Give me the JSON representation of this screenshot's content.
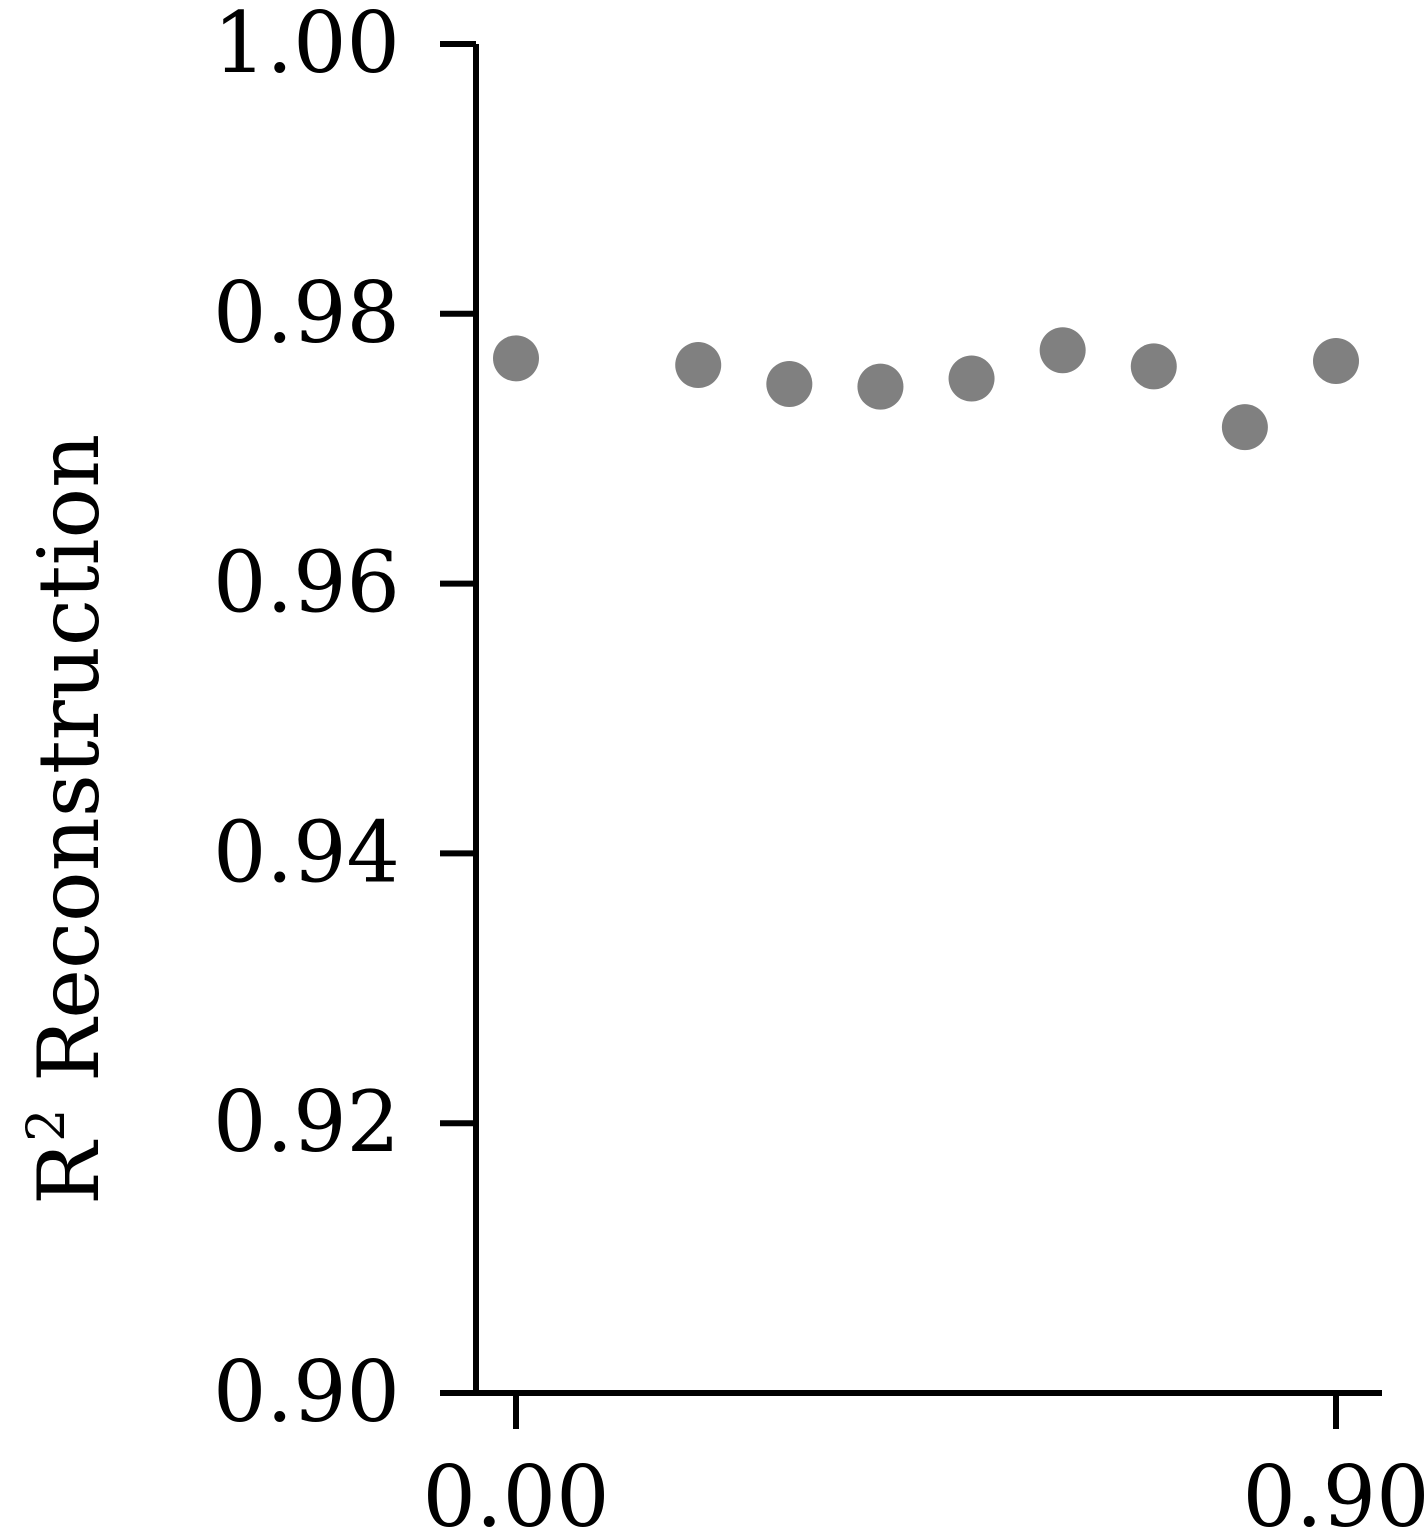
{
  "chart_data": {
    "type": "scatter",
    "title": "",
    "xlabel": "",
    "ylabel": "R",
    "ylabel_superscript": "2",
    "ylabel_rest": " Reconstruction",
    "xlim": [
      -0.0,
      0.9
    ],
    "ylim": [
      0.9,
      1.0
    ],
    "x_ticks": [
      "0.00",
      "0.90"
    ],
    "y_ticks": [
      "0.90",
      "0.92",
      "0.94",
      "0.96",
      "0.98",
      "1.00"
    ],
    "grid": false,
    "point_color": "#808080",
    "series": [
      {
        "x": [
          0.0,
          0.2,
          0.3,
          0.4,
          0.5,
          0.6,
          0.7,
          0.8,
          0.9
        ],
        "y": [
          0.9767,
          0.9762,
          0.9748,
          0.9746,
          0.9752,
          0.9773,
          0.9761,
          0.9716,
          0.9765
        ]
      }
    ]
  }
}
